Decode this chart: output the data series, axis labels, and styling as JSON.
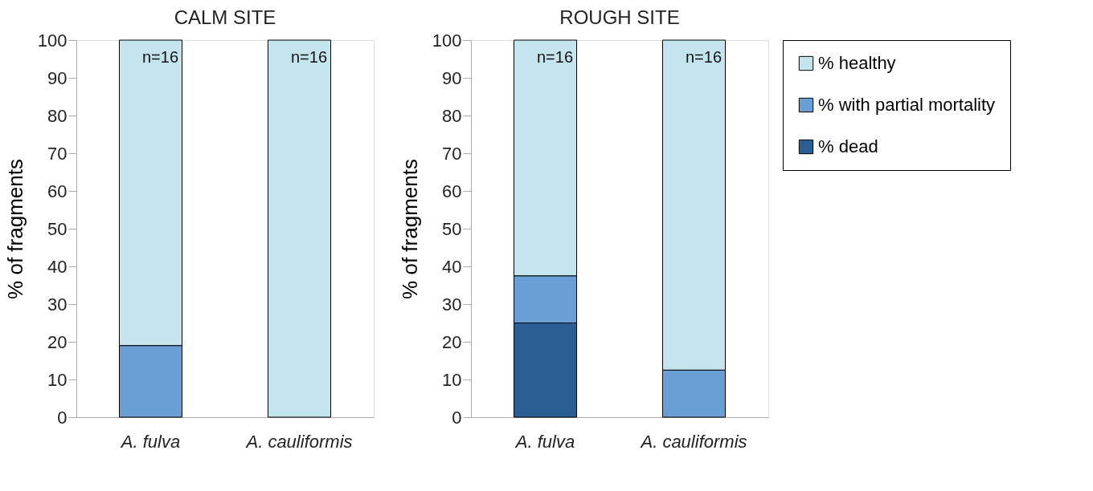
{
  "chart_data": [
    {
      "type": "bar",
      "stacked": true,
      "title": "CALM SITE",
      "ylabel": "% of fragments",
      "categories": [
        "A. fulva",
        "A. cauliformis"
      ],
      "ylim": [
        0,
        100
      ],
      "yticks": [
        0,
        10,
        20,
        30,
        40,
        50,
        60,
        70,
        80,
        90,
        100
      ],
      "grid": false,
      "legend": false,
      "series": [
        {
          "color": "#2a5d91",
          "values": [
            null,
            null
          ]
        },
        {
          "color": "#6a9fd6",
          "values": [
            19,
            null
          ]
        },
        {
          "color": "#c5e5ee",
          "values": [
            81,
            100
          ]
        }
      ],
      "annotations": [
        "n=16",
        "n=16"
      ]
    },
    {
      "type": "bar",
      "stacked": true,
      "title": "ROUGH SITE",
      "ylabel": "% of fragments",
      "categories": [
        "A. fulva",
        "A. cauliformis"
      ],
      "ylim": [
        0,
        100
      ],
      "yticks": [
        0,
        10,
        20,
        30,
        40,
        50,
        60,
        70,
        80,
        90,
        100
      ],
      "grid": false,
      "legend": "right",
      "series": [
        {
          "name": "% dead",
          "color": "#2a5d91",
          "values": [
            25,
            null
          ]
        },
        {
          "name": "% with partial mortality",
          "color": "#6a9fd6",
          "values": [
            12.5,
            12.5
          ]
        },
        {
          "name": "% healthy",
          "color": "#c5e5ee",
          "values": [
            62.5,
            87.5
          ]
        }
      ],
      "annotations": [
        "n=16",
        "n=16"
      ]
    }
  ]
}
